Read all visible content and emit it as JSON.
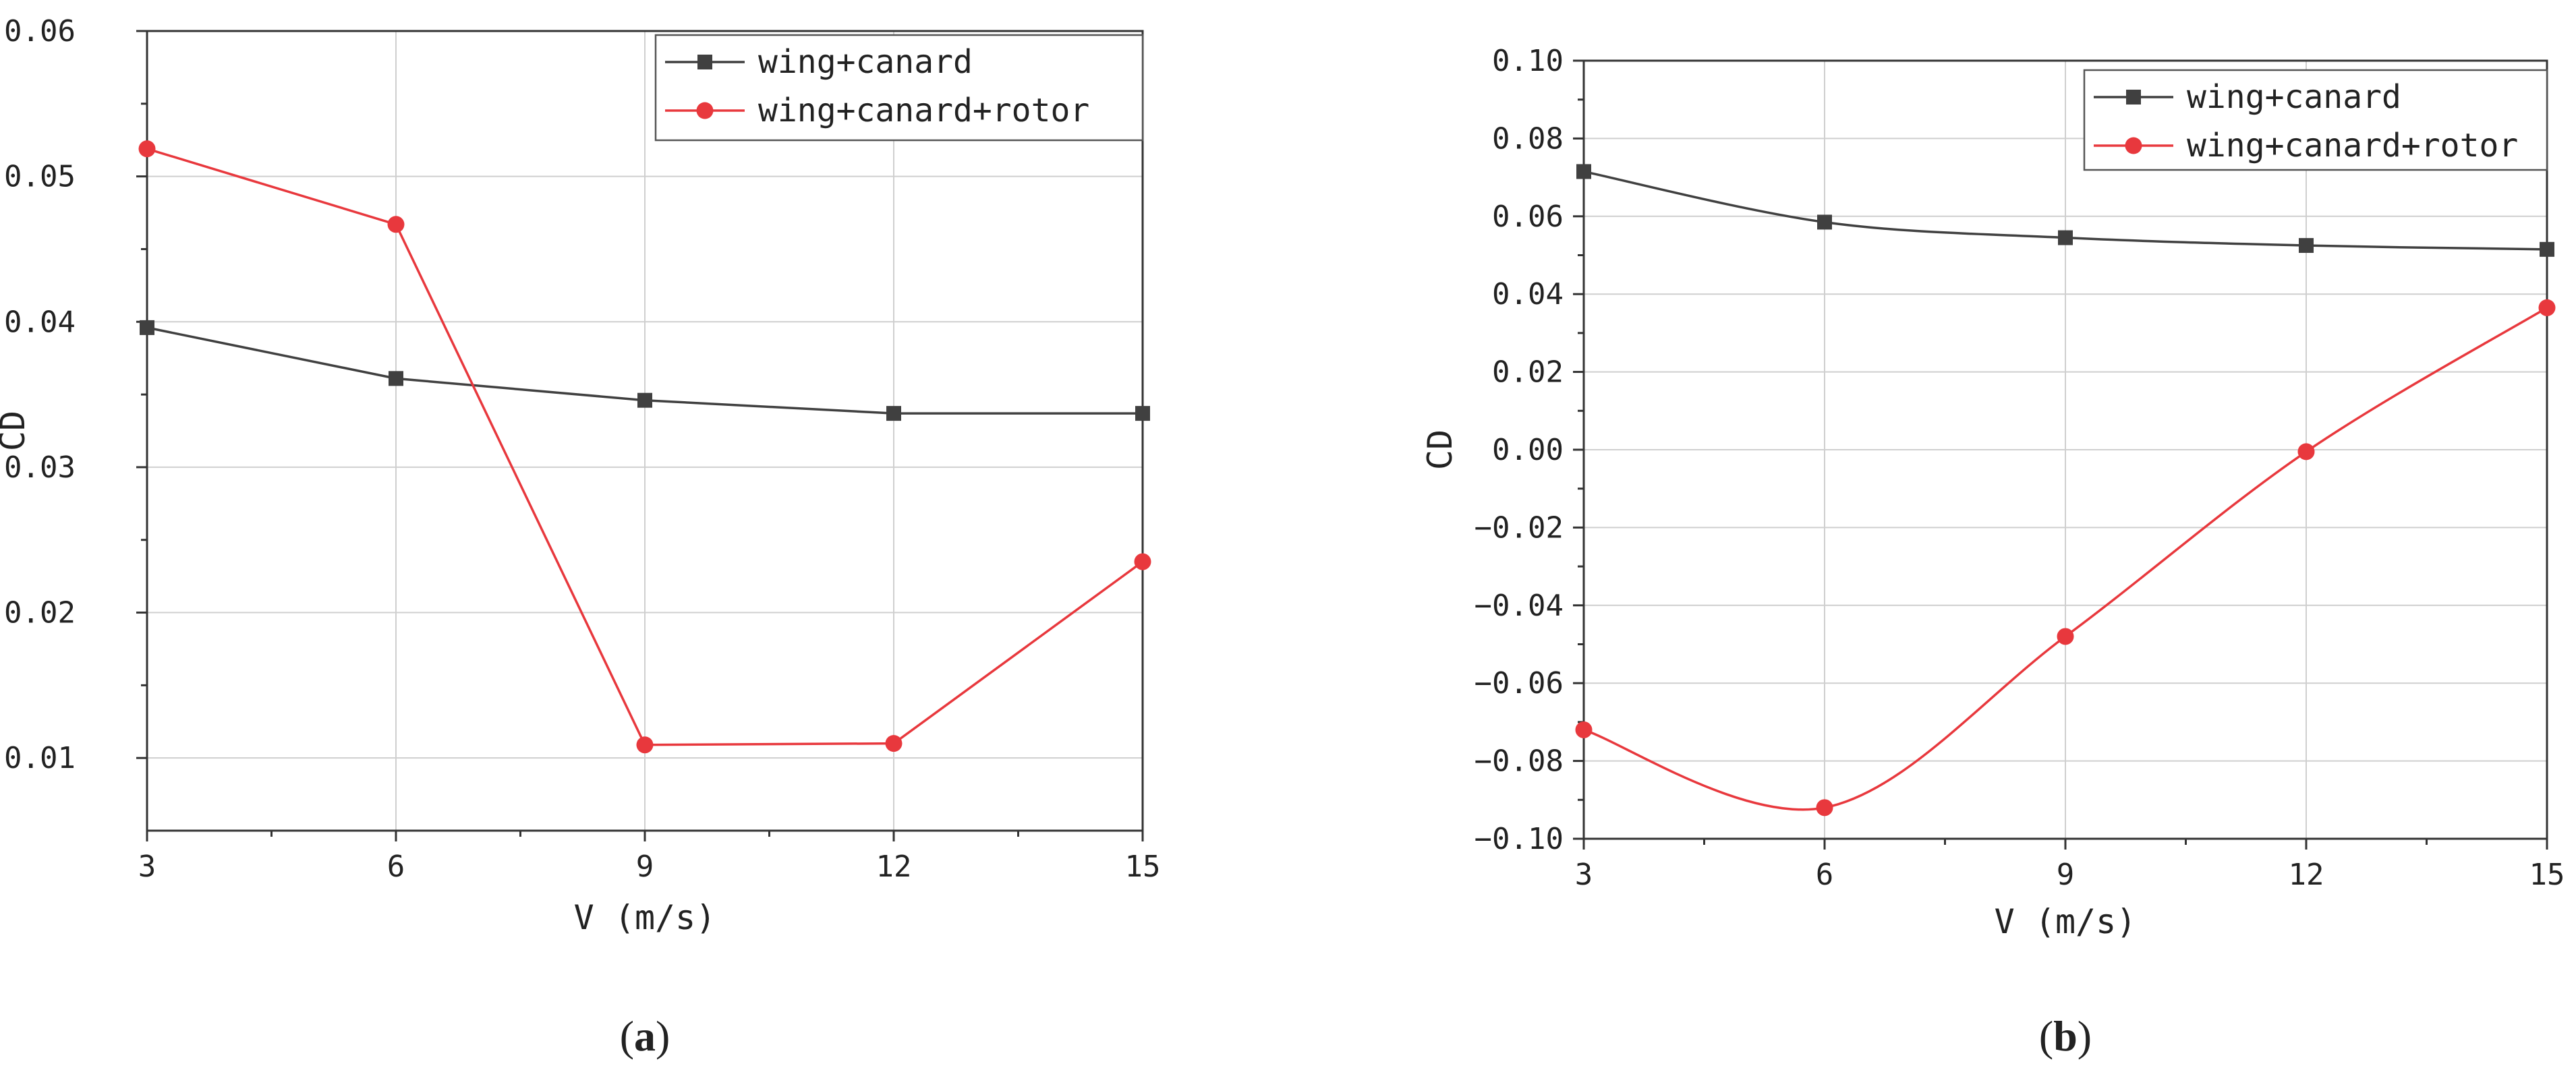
{
  "chart_data": [
    {
      "type": "line",
      "panel": "(a)",
      "panel_letter": "a",
      "xlabel": "V (m/s)",
      "ylabel": "CD",
      "xlim": [
        3,
        15
      ],
      "ylim": [
        0.005,
        0.06
      ],
      "xticks": [
        3,
        6,
        9,
        12,
        15
      ],
      "xtick_labels": [
        "3",
        "6",
        "9",
        "12",
        "15"
      ],
      "yticks": [
        0.01,
        0.02,
        0.03,
        0.04,
        0.05,
        0.06
      ],
      "ytick_labels": [
        "0.01",
        "0.02",
        "0.03",
        "0.04",
        "0.05",
        "0.06"
      ],
      "grid": true,
      "legend_position": "top-right",
      "smooth": false,
      "series": [
        {
          "name": "wing+canard",
          "marker": "square",
          "color": "#404040",
          "x": [
            3,
            6,
            9,
            12,
            15
          ],
          "values": [
            0.0396,
            0.0361,
            0.0346,
            0.0337,
            0.0337
          ]
        },
        {
          "name": "wing+canard+rotor",
          "marker": "circle",
          "color": "#e8383d",
          "x": [
            3,
            6,
            9,
            12,
            15
          ],
          "values": [
            0.0519,
            0.0467,
            0.0109,
            0.011,
            0.0235
          ]
        }
      ]
    },
    {
      "type": "line",
      "panel": "(b)",
      "panel_letter": "b",
      "xlabel": "V (m/s)",
      "ylabel": "CD",
      "xlim": [
        3,
        15
      ],
      "ylim": [
        -0.1,
        0.1
      ],
      "xticks": [
        3,
        6,
        9,
        12,
        15
      ],
      "xtick_labels": [
        "3",
        "6",
        "9",
        "12",
        "15"
      ],
      "yticks": [
        -0.1,
        -0.08,
        -0.06,
        -0.04,
        -0.02,
        0.0,
        0.02,
        0.04,
        0.06,
        0.08,
        0.1
      ],
      "ytick_labels": [
        "−0.10",
        "−0.08",
        "−0.06",
        "−0.04",
        "−0.02",
        "0.00",
        "0.02",
        "0.04",
        "0.06",
        "0.08",
        "0.10"
      ],
      "grid": true,
      "legend_position": "top-right",
      "smooth": true,
      "series": [
        {
          "name": "wing+canard",
          "marker": "square",
          "color": "#404040",
          "x": [
            3,
            6,
            9,
            12,
            15
          ],
          "values": [
            0.0715,
            0.0585,
            0.0545,
            0.0525,
            0.0515
          ]
        },
        {
          "name": "wing+canard+rotor",
          "marker": "circle",
          "color": "#e8383d",
          "x": [
            3,
            6,
            9,
            12,
            15
          ],
          "values": [
            -0.072,
            -0.092,
            -0.048,
            -0.0005,
            0.0365
          ]
        }
      ]
    }
  ]
}
